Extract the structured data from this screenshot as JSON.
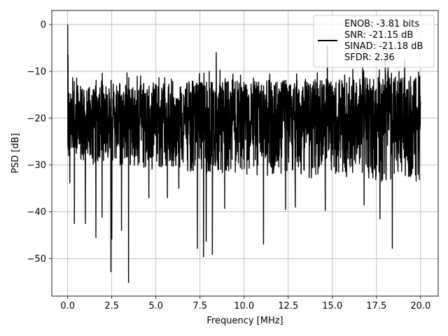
{
  "chart_data": {
    "type": "line",
    "title": "",
    "xlabel": "Frequency [MHz]",
    "ylabel": "PSD [dB]",
    "xlim": [
      -0.9,
      21.0
    ],
    "ylim": [
      -58,
      3
    ],
    "xticks": [
      0.0,
      2.5,
      5.0,
      7.5,
      10.0,
      12.5,
      15.0,
      17.5,
      20.0
    ],
    "xtick_labels": [
      "0.0",
      "2.5",
      "5.0",
      "7.5",
      "10.0",
      "12.5",
      "15.0",
      "17.5",
      "20.0"
    ],
    "yticks": [
      0,
      -10,
      -20,
      -30,
      -40,
      -50
    ],
    "ytick_labels": [
      "0",
      "−10",
      "−20",
      "−30",
      "−40",
      "−50"
    ],
    "grid": true,
    "legend_position": "top-right",
    "line_color": "#000000",
    "legend_lines": [
      "ENOB: -3.81 bits",
      "SNR: -21.15 dB",
      "SINAD: -21.18 dB",
      "SFDR: 2.36"
    ],
    "series": [
      {
        "x_start": 0.0,
        "x_end": 20.0,
        "points": 2000,
        "noise_floor_db": -20.5,
        "upper_envelope_db": [
          -13,
          -11
        ],
        "lower_envelope_db": [
          -30,
          -34
        ],
        "peaks": [
          {
            "x": 0.0,
            "y": 0.0
          },
          {
            "x": 0.02,
            "y": -6.5
          },
          {
            "x": 0.05,
            "y": -17
          },
          {
            "x": 0.12,
            "y": -10.5
          },
          {
            "x": 8.42,
            "y": -6.0
          },
          {
            "x": 14.72,
            "y": -4.5
          },
          {
            "x": 18.0,
            "y": -7.0
          },
          {
            "x": 19.1,
            "y": -7.5
          }
        ],
        "dips": [
          {
            "x": 0.12,
            "y": -33.8
          },
          {
            "x": 0.38,
            "y": -42.5
          },
          {
            "x": 1.0,
            "y": -42.5
          },
          {
            "x": 1.6,
            "y": -45.5
          },
          {
            "x": 1.95,
            "y": -41.2
          },
          {
            "x": 2.45,
            "y": -52.8
          },
          {
            "x": 2.5,
            "y": -45.8
          },
          {
            "x": 3.05,
            "y": -44.0
          },
          {
            "x": 3.45,
            "y": -55.1
          },
          {
            "x": 4.6,
            "y": -37.0
          },
          {
            "x": 5.65,
            "y": -37.0
          },
          {
            "x": 6.3,
            "y": -35.0
          },
          {
            "x": 7.35,
            "y": -47.8
          },
          {
            "x": 7.7,
            "y": -49.6
          },
          {
            "x": 7.85,
            "y": -46.3
          },
          {
            "x": 8.2,
            "y": -49.1
          },
          {
            "x": 8.9,
            "y": -39.3
          },
          {
            "x": 11.1,
            "y": -46.9
          },
          {
            "x": 12.35,
            "y": -39.5
          },
          {
            "x": 12.9,
            "y": -39.0
          },
          {
            "x": 14.6,
            "y": -39.7
          },
          {
            "x": 16.8,
            "y": -38.5
          },
          {
            "x": 17.7,
            "y": -41.5
          },
          {
            "x": 18.4,
            "y": -47.8
          }
        ]
      }
    ]
  }
}
